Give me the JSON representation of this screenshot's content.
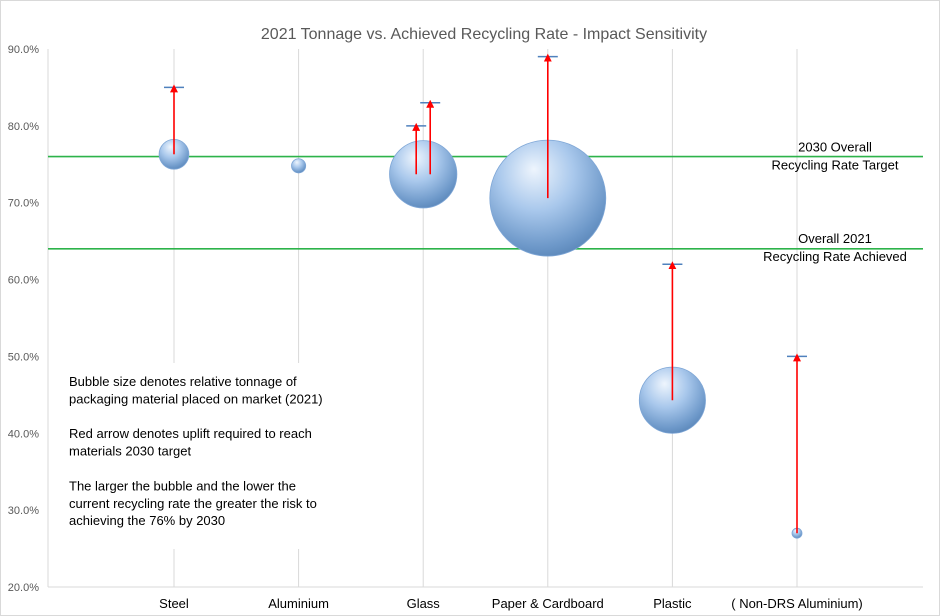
{
  "chart_data": {
    "type": "bubble",
    "title": "2021 Tonnage vs. Achieved Recycling Rate - Impact Sensitivity",
    "ylim": [
      0.2,
      0.9
    ],
    "yticks": [
      0.2,
      0.3,
      0.4,
      0.5,
      0.6,
      0.7,
      0.8,
      0.9
    ],
    "ytick_labels": [
      "20.0%",
      "30.0%",
      "40.0%",
      "50.0%",
      "60.0%",
      "70.0%",
      "80.0%",
      "90.0%"
    ],
    "grid": "vertical",
    "categories": [
      "Steel",
      "Aluminium",
      "Glass",
      "Paper & Cardboard",
      "Plastic",
      "( Non-DRS Aluminium)"
    ],
    "bubble_color": "#8fb4e3",
    "arrow_color": "#ff0000",
    "target_cap_color": "#4f81bd",
    "points": [
      {
        "category": "Steel",
        "rate": 0.763,
        "relative_tonnage": 0.066,
        "targets": [
          0.85
        ]
      },
      {
        "category": "Aluminium",
        "rate": 0.748,
        "relative_tonnage": 0.015,
        "targets": []
      },
      {
        "category": "Glass",
        "rate": 0.737,
        "relative_tonnage": 0.337,
        "targets": [
          0.8,
          0.83
        ]
      },
      {
        "category": "Paper & Cardboard",
        "rate": 0.706,
        "relative_tonnage": 1.0,
        "targets": [
          0.89
        ]
      },
      {
        "category": "Plastic",
        "rate": 0.443,
        "relative_tonnage": 0.326,
        "targets": [
          0.62
        ]
      },
      {
        "category": "( Non-DRS Aluminium)",
        "rate": 0.27,
        "relative_tonnage": 0.007,
        "targets": [
          0.5
        ]
      }
    ],
    "reference_lines": [
      {
        "value": 0.76,
        "color": "#2db34a",
        "label_lines": [
          "2030 Overall",
          "Recycling Rate Target"
        ]
      },
      {
        "value": 0.64,
        "color": "#2db34a",
        "label_lines": [
          "Overall 2021",
          "Recycling Rate Achieved"
        ]
      }
    ],
    "annotation_lines": [
      "Bubble size denotes relative tonnage of",
      "packaging material placed on market (2021)",
      "",
      "Red arrow denotes uplift required to reach",
      "materials 2030 target",
      "",
      "The larger the bubble and the lower the",
      "current recycling rate the greater the risk to",
      "achieving the 76% by 2030"
    ]
  }
}
